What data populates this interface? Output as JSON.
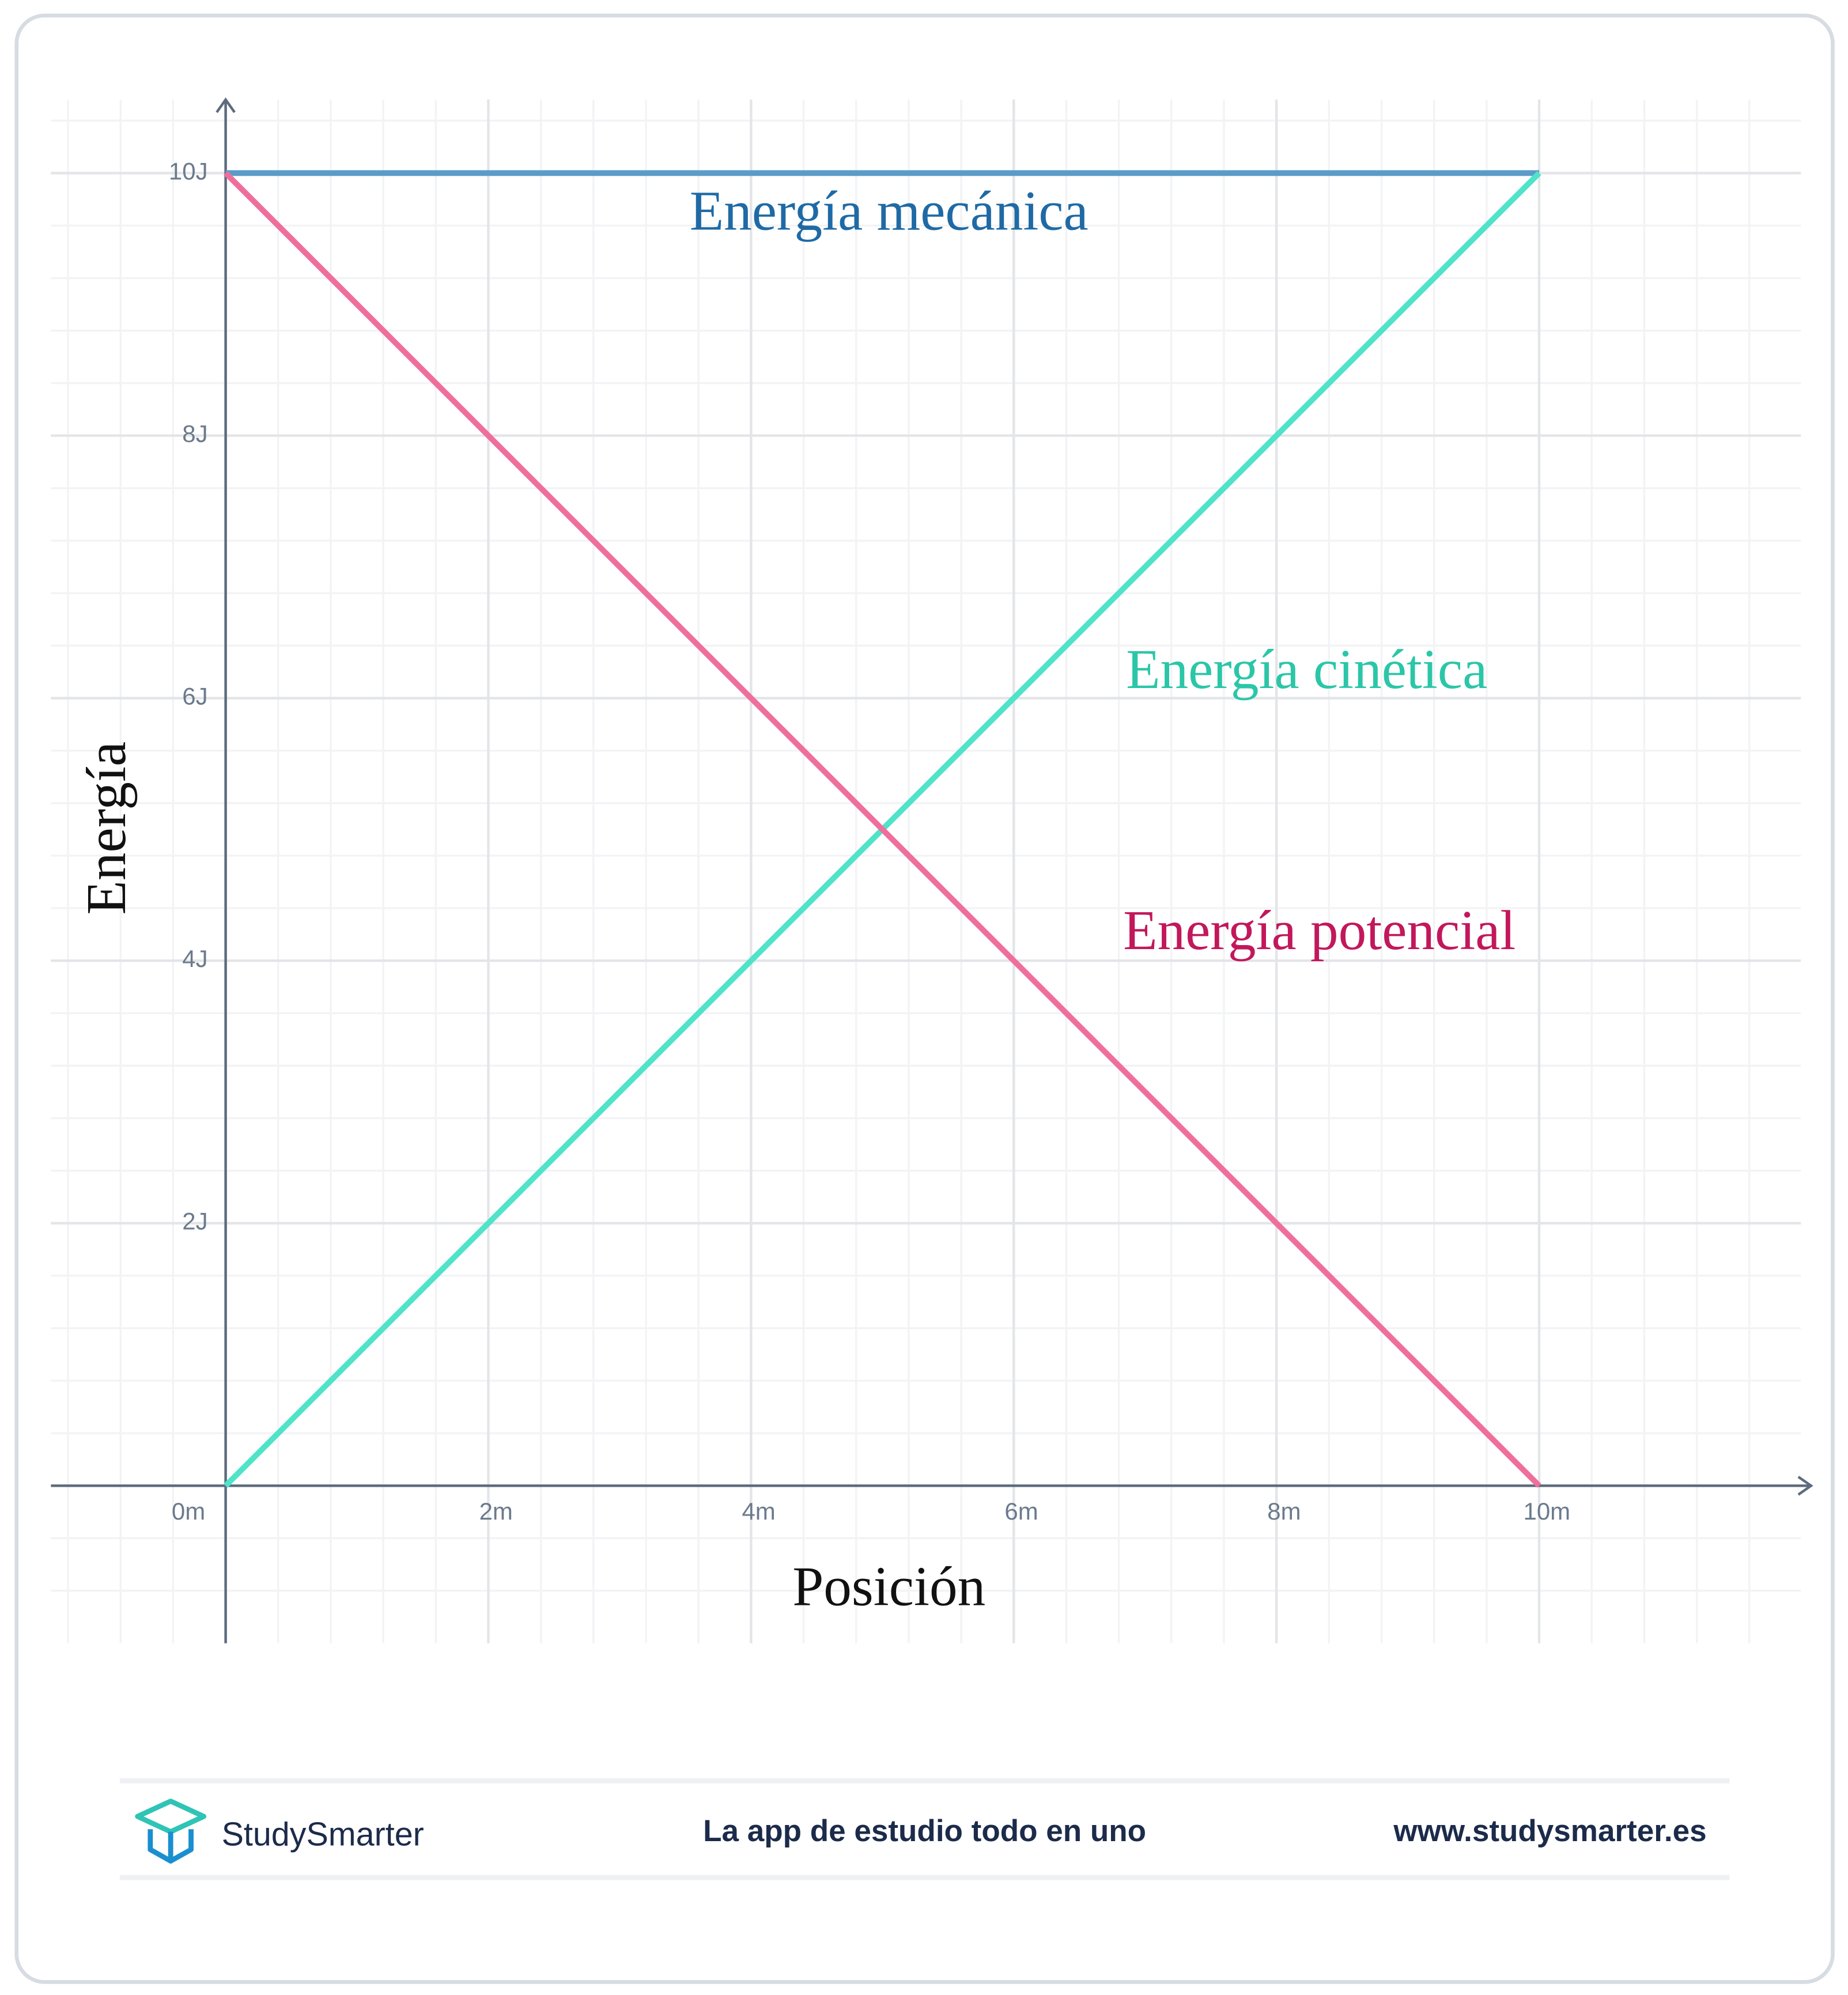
{
  "chart_data": {
    "type": "line",
    "x_label": "Posición",
    "y_label": "Energía",
    "x": [
      0,
      10
    ],
    "series": [
      {
        "name": "Energía mecánica",
        "color": "#5b9bc9",
        "label_color": "#1f6aa5",
        "values": [
          10,
          10
        ]
      },
      {
        "name": "Energía cinética",
        "color": "#4fe3c9",
        "label_color": "#2bc6a8",
        "values": [
          0,
          10
        ]
      },
      {
        "name": "Energía potencial",
        "color": "#ef6f9c",
        "label_color": "#c2185b",
        "values": [
          10,
          0
        ]
      }
    ],
    "xlim": [
      -1.33,
      12.07
    ],
    "ylim": [
      -1.2,
      10.56
    ],
    "xticks": [
      {
        "value": 0,
        "label": "0m"
      },
      {
        "value": 2,
        "label": "2m"
      },
      {
        "value": 4,
        "label": "4m"
      },
      {
        "value": 6,
        "label": "6m"
      },
      {
        "value": 8,
        "label": "8m"
      },
      {
        "value": 10,
        "label": "10m"
      }
    ],
    "yticks": [
      {
        "value": 2,
        "label": "2J"
      },
      {
        "value": 4,
        "label": "4J"
      },
      {
        "value": 6,
        "label": "6J"
      },
      {
        "value": 8,
        "label": "8J"
      },
      {
        "value": 10,
        "label": "10J"
      }
    ],
    "grid": true
  },
  "footer": {
    "brand": "StudySmarter",
    "tagline": "La app de estudio todo en uno",
    "url": "www.studysmarter.es"
  }
}
